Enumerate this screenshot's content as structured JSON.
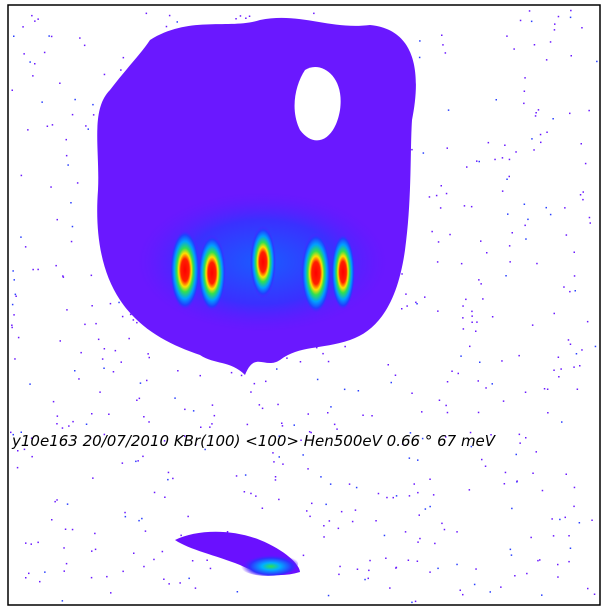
{
  "caption": "y10e163 20/07/2010 KBr(100) <100> Hen500eV 0.66 ° 67 meV"
}
